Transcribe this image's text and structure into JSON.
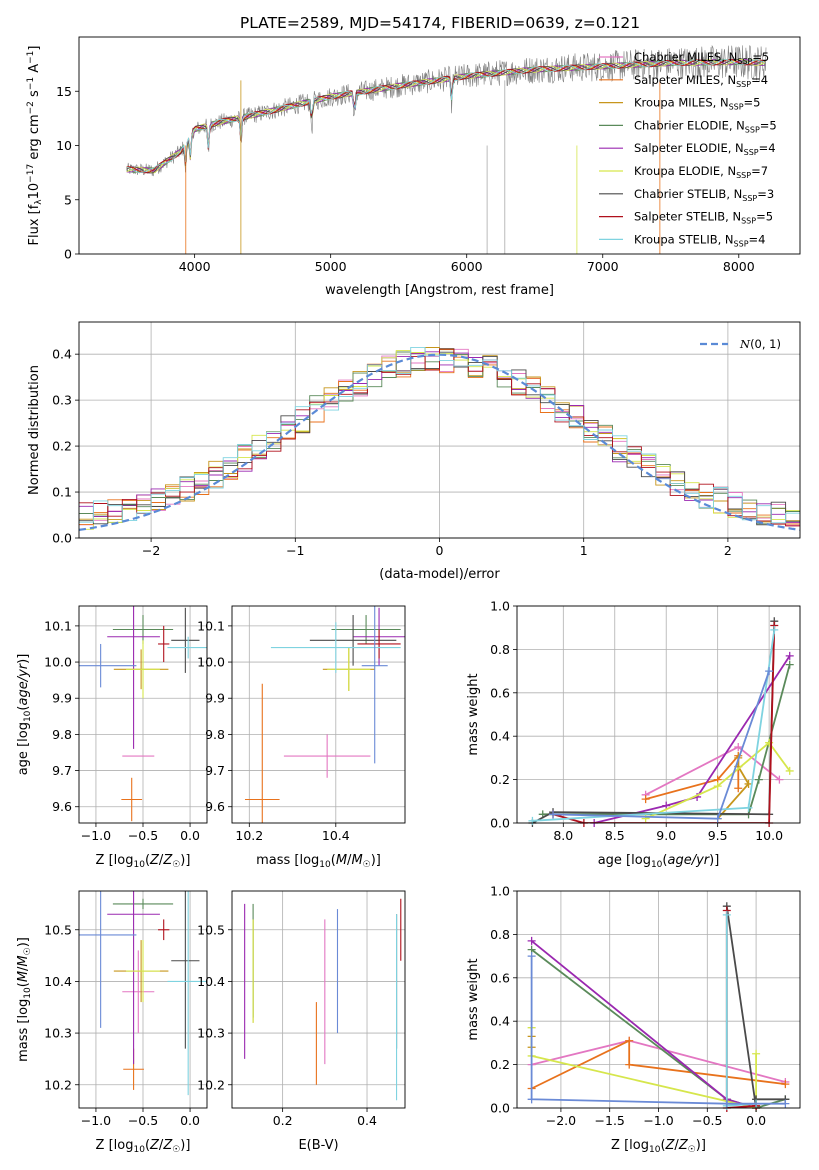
{
  "title": "PLATE=2589, MJD=54174, FIBERID=0639, z=0.121",
  "colors": [
    "#e377c2",
    "#e8721c",
    "#c7961c",
    "#5a8a5a",
    "#9a28b0",
    "#d6e64c",
    "#4a4a4a",
    "#b0101c",
    "#7fd3e0"
  ],
  "chart_data": [
    {
      "id": "spectrum",
      "type": "line",
      "xlabel": "wavelength [Angstrom, rest frame]",
      "ylabel": "Flux [f_λ 10^-17 erg cm^-2 s^-1 A^-1]",
      "xlim": [
        3150,
        8450
      ],
      "ylim": [
        0,
        20
      ],
      "xticks": [
        4000,
        5000,
        6000,
        7000,
        8000
      ],
      "yticks": [
        0,
        5,
        10,
        15
      ],
      "grid": false,
      "legend": "top-right",
      "legend_entries": [
        {
          "model": "Chabrier MILES",
          "nssp": "5",
          "color": "#e377c2"
        },
        {
          "model": "Salpeter MILES",
          "nssp": "4",
          "color": "#e8721c"
        },
        {
          "model": "Kroupa MILES",
          "nssp": "5",
          "color": "#c7961c"
        },
        {
          "model": "Chabrier ELODIE",
          "nssp": "5",
          "color": "#5a8a5a"
        },
        {
          "model": "Salpeter ELODIE",
          "nssp": "4",
          "color": "#9a28b0"
        },
        {
          "model": "Kroupa ELODIE",
          "nssp": "7",
          "color": "#d6e64c"
        },
        {
          "model": "Chabrier STELIB",
          "nssp": "3",
          "color": "#4a4a4a"
        },
        {
          "model": "Salpeter STELIB",
          "nssp": "5",
          "color": "#b0101c"
        },
        {
          "model": "Kroupa STELIB",
          "nssp": "4",
          "color": "#7fd3e0"
        }
      ],
      "spectrum_wavelength_range": [
        3500,
        8200
      ],
      "continuum": [
        [
          3500,
          7.8
        ],
        [
          3700,
          7.7
        ],
        [
          3900,
          9.5
        ],
        [
          4000,
          11.5
        ],
        [
          4200,
          12.2
        ],
        [
          4500,
          13.0
        ],
        [
          5000,
          14.5
        ],
        [
          5500,
          15.5
        ],
        [
          6000,
          16.4
        ],
        [
          6500,
          17.0
        ],
        [
          7000,
          17.3
        ],
        [
          7500,
          17.6
        ],
        [
          8000,
          17.7
        ],
        [
          8200,
          17.6
        ]
      ],
      "model_range": [
        3500,
        8200
      ]
    },
    {
      "id": "residuals",
      "type": "line",
      "xlabel": "(data-model)/error",
      "ylabel": "Normed distribution",
      "xlim": [
        -2.5,
        2.5
      ],
      "ylim": [
        0,
        0.47
      ],
      "xticks": [
        -2,
        -1,
        0,
        1,
        2
      ],
      "yticks": [
        0.0,
        0.1,
        0.2,
        0.3,
        0.4
      ],
      "grid": true,
      "legend": "top-right",
      "legend_label": "N(0,1)",
      "gaussian_color": "#5a8ad6"
    },
    {
      "id": "age-Z",
      "type": "scatter",
      "xlabel": "Z [log10(Z/Z☉)]",
      "ylabel": "age  [log10(age/yr)]",
      "xlim": [
        -1.18,
        0.18
      ],
      "ylim": [
        9.555,
        10.155
      ],
      "xticks": [
        -1.0,
        -0.5,
        0.0
      ],
      "yticks": [
        9.6,
        9.7,
        9.8,
        9.9,
        10.0,
        10.1
      ],
      "grid": true,
      "points": [
        {
          "x": -0.55,
          "y": 9.74,
          "xerr": 0.17,
          "yerr": 0.0,
          "color": "#e377c2"
        },
        {
          "x": -0.62,
          "y": 9.62,
          "xerr": 0.11,
          "yerr": 0.06,
          "color": "#e8721c"
        },
        {
          "x": -0.52,
          "y": 9.98,
          "xerr": 0.29,
          "yerr": 0.055,
          "color": "#c7961c"
        },
        {
          "x": -0.5,
          "y": 10.09,
          "xerr": 0.32,
          "yerr": 0.04,
          "color": "#5a8a5a"
        },
        {
          "x": -0.6,
          "y": 10.07,
          "xerr": 0.28,
          "yerr": 0.31,
          "color": "#9a28b0"
        },
        {
          "x": -0.5,
          "y": 9.98,
          "xerr": 0.18,
          "yerr": 0.08,
          "color": "#d6e64c"
        },
        {
          "x": -0.05,
          "y": 10.06,
          "xerr": 0.15,
          "yerr": 0.09,
          "color": "#4a4a4a"
        },
        {
          "x": -0.28,
          "y": 10.05,
          "xerr": 0.06,
          "yerr": 0.05,
          "color": "#b0101c"
        },
        {
          "x": -0.02,
          "y": 10.04,
          "xerr": 0.22,
          "yerr": 0.03,
          "color": "#7fd3e0"
        },
        {
          "x": -0.95,
          "y": 9.99,
          "xerr": 0.38,
          "yerr": 0.06,
          "color": "#6a8ad6"
        }
      ]
    },
    {
      "id": "age-mass",
      "type": "scatter",
      "xlabel": "mass [log10(M/M☉)]",
      "ylabel": "",
      "xlim": [
        10.16,
        10.56
      ],
      "ylim": [
        9.555,
        10.155
      ],
      "xticks": [
        10.2,
        10.4
      ],
      "yticks": [
        9.6,
        9.7,
        9.8,
        9.9,
        10.0,
        10.1
      ],
      "grid": true,
      "points": [
        {
          "x": 10.38,
          "y": 9.74,
          "xerr": 0.1,
          "yerr": 0.06,
          "color": "#e377c2"
        },
        {
          "x": 10.23,
          "y": 9.62,
          "xerr": 0.04,
          "yerr": 0.32,
          "color": "#e8721c"
        },
        {
          "x": 10.43,
          "y": 9.98,
          "xerr": 0.06,
          "yerr": 0.06,
          "color": "#c7961c"
        },
        {
          "x": 10.47,
          "y": 10.09,
          "xerr": 0.08,
          "yerr": 0.04,
          "color": "#5a8a5a"
        },
        {
          "x": 10.5,
          "y": 10.07,
          "xerr": 0.06,
          "yerr": 0.08,
          "color": "#9a28b0"
        },
        {
          "x": 10.43,
          "y": 9.98,
          "xerr": 0.05,
          "yerr": 0.06,
          "color": "#d6e64c"
        },
        {
          "x": 10.44,
          "y": 10.06,
          "xerr": 0.1,
          "yerr": 0.07,
          "color": "#4a4a4a"
        },
        {
          "x": 10.5,
          "y": 10.05,
          "xerr": 0.05,
          "yerr": 0.04,
          "color": "#b0101c"
        },
        {
          "x": 10.4,
          "y": 10.04,
          "xerr": 0.15,
          "yerr": 0.07,
          "color": "#7fd3e0"
        },
        {
          "x": 10.49,
          "y": 9.99,
          "xerr": 0.03,
          "yerr": 0.27,
          "color": "#6a8ad6"
        }
      ]
    },
    {
      "id": "weights-age",
      "type": "line",
      "xlabel": "age  [log10(age/yr)]",
      "ylabel": "mass weight",
      "xlim": [
        7.55,
        10.3
      ],
      "ylim": [
        0.0,
        1.0
      ],
      "xticks": [
        8.0,
        8.5,
        9.0,
        9.5,
        10.0
      ],
      "yticks": [
        0.0,
        0.2,
        0.4,
        0.6,
        0.8,
        1.0
      ],
      "grid": true,
      "series": [
        {
          "color": "#e377c2",
          "points": [
            [
              8.8,
              0.13
            ],
            [
              9.7,
              0.35
            ],
            [
              10.1,
              0.2
            ]
          ]
        },
        {
          "color": "#e8721c",
          "points": [
            [
              8.8,
              0.11
            ],
            [
              9.5,
              0.2
            ],
            [
              9.7,
              0.31
            ],
            [
              9.7,
              0.16
            ]
          ]
        },
        {
          "color": "#c7961c",
          "points": [
            [
              9.5,
              0.02
            ],
            [
              9.8,
              0.18
            ],
            [
              9.7,
              0.26
            ],
            [
              9.7,
              0.3
            ]
          ]
        },
        {
          "color": "#5a8a5a",
          "points": [
            [
              7.8,
              0.04
            ],
            [
              9.8,
              0.04
            ],
            [
              9.9,
              0.2
            ],
            [
              10.2,
              0.73
            ]
          ]
        },
        {
          "color": "#9a28b0",
          "points": [
            [
              8.3,
              0.0
            ],
            [
              9.0,
              0.08
            ],
            [
              9.3,
              0.12
            ],
            [
              10.2,
              0.77
            ]
          ]
        },
        {
          "color": "#d6e64c",
          "points": [
            [
              8.8,
              0.02
            ],
            [
              9.5,
              0.17
            ],
            [
              10.0,
              0.37
            ],
            [
              10.2,
              0.24
            ]
          ]
        },
        {
          "color": "#4a4a4a",
          "points": [
            [
              7.7,
              0.0
            ],
            [
              7.9,
              0.05
            ],
            [
              10.0,
              0.04
            ],
            [
              10.05,
              0.93
            ]
          ]
        },
        {
          "color": "#b0101c",
          "points": [
            [
              7.9,
              0.04
            ],
            [
              8.2,
              0.0
            ],
            [
              10.0,
              0.0
            ],
            [
              10.05,
              0.91
            ]
          ]
        },
        {
          "color": "#7fd3e0",
          "points": [
            [
              7.7,
              0.01
            ],
            [
              9.8,
              0.07
            ],
            [
              10.05,
              0.89
            ]
          ]
        },
        {
          "color": "#6a8ad6",
          "points": [
            [
              7.9,
              0.04
            ],
            [
              9.5,
              0.02
            ],
            [
              10.0,
              0.7
            ]
          ]
        }
      ]
    },
    {
      "id": "mass-Z",
      "type": "scatter",
      "xlabel": "Z [log10(Z/Z☉)]",
      "ylabel": "mass [log10(M/M☉)]",
      "xlim": [
        -1.18,
        0.18
      ],
      "ylim": [
        10.155,
        10.575
      ],
      "xticks": [
        -1.0,
        -0.5,
        0.0
      ],
      "yticks": [
        10.2,
        10.3,
        10.4,
        10.5
      ],
      "grid": true,
      "points": [
        {
          "x": -0.55,
          "y": 10.38,
          "xerr": 0.17,
          "yerr": 0.08,
          "color": "#e377c2"
        },
        {
          "x": -0.6,
          "y": 10.23,
          "xerr": 0.11,
          "yerr": 0.04,
          "color": "#e8721c"
        },
        {
          "x": -0.52,
          "y": 10.42,
          "xerr": 0.29,
          "yerr": 0.06,
          "color": "#c7961c"
        },
        {
          "x": -0.5,
          "y": 10.55,
          "xerr": 0.32,
          "yerr": 0.01,
          "color": "#5a8a5a"
        },
        {
          "x": -0.6,
          "y": 10.53,
          "xerr": 0.28,
          "yerr": 0.29,
          "color": "#9a28b0"
        },
        {
          "x": -0.5,
          "y": 10.42,
          "xerr": 0.18,
          "yerr": 0.06,
          "color": "#d6e64c"
        },
        {
          "x": -0.05,
          "y": 10.44,
          "xerr": 0.15,
          "yerr": 0.17,
          "color": "#4a4a4a"
        },
        {
          "x": -0.28,
          "y": 10.5,
          "xerr": 0.06,
          "yerr": 0.02,
          "color": "#b0101c"
        },
        {
          "x": -0.02,
          "y": 10.4,
          "xerr": 0.22,
          "yerr": 0.22,
          "color": "#7fd3e0"
        },
        {
          "x": -0.95,
          "y": 10.49,
          "xerr": 0.38,
          "yerr": 0.18,
          "color": "#6a8ad6"
        }
      ]
    },
    {
      "id": "mass-EBV",
      "type": "scatter",
      "xlabel": "E(B-V)",
      "ylabel": "",
      "xlim": [
        0.08,
        0.49
      ],
      "ylim": [
        10.155,
        10.575
      ],
      "xticks": [
        0.2,
        0.4
      ],
      "yticks": [
        10.2,
        10.3,
        10.4,
        10.5
      ],
      "grid": true,
      "points": [
        {
          "x": 0.3,
          "y": 10.38,
          "yerr": 0.14,
          "color": "#e377c2"
        },
        {
          "x": 0.28,
          "y": 10.28,
          "yerr": 0.08,
          "color": "#e8721c"
        },
        {
          "x": 0.13,
          "y": 10.42,
          "yerr": 0.1,
          "color": "#c7961c"
        },
        {
          "x": 0.13,
          "y": 10.44,
          "yerr": 0.11,
          "color": "#5a8a5a"
        },
        {
          "x": 0.11,
          "y": 10.4,
          "yerr": 0.15,
          "color": "#9a28b0"
        },
        {
          "x": 0.13,
          "y": 10.42,
          "yerr": 0.1,
          "color": "#d6e64c"
        },
        {
          "x": 0.47,
          "y": 10.4,
          "yerr": 0.13,
          "color": "#4a4a4a"
        },
        {
          "x": 0.48,
          "y": 10.5,
          "yerr": 0.06,
          "color": "#b0101c"
        },
        {
          "x": 0.47,
          "y": 10.35,
          "yerr": 0.18,
          "color": "#7fd3e0"
        },
        {
          "x": 0.33,
          "y": 10.42,
          "yerr": 0.12,
          "color": "#6a8ad6"
        }
      ]
    },
    {
      "id": "weights-Z",
      "type": "line",
      "xlabel": "Z [log10(Z/Z☉)]",
      "ylabel": "mass weight",
      "xlim": [
        -2.45,
        0.45
      ],
      "ylim": [
        0.0,
        1.0
      ],
      "xticks": [
        -2.0,
        -1.5,
        -1.0,
        -0.5,
        0.0
      ],
      "yticks": [
        0.0,
        0.2,
        0.4,
        0.6,
        0.8,
        1.0
      ],
      "grid": true,
      "series": [
        {
          "color": "#e377c2",
          "points": [
            [
              -2.3,
              0.2
            ],
            [
              -1.3,
              0.31
            ],
            [
              0.3,
              0.12
            ]
          ]
        },
        {
          "color": "#e8721c",
          "points": [
            [
              -2.3,
              0.09
            ],
            [
              -1.3,
              0.31
            ],
            [
              -1.3,
              0.2
            ],
            [
              0.3,
              0.11
            ]
          ]
        },
        {
          "color": "#c7961c",
          "points": [
            [
              -2.3,
              0.28
            ],
            [
              -2.3,
              0.33
            ]
          ]
        },
        {
          "color": "#5a8a5a",
          "points": [
            [
              -2.3,
              0.73
            ],
            [
              -0.3,
              0.04
            ],
            [
              0.0,
              0.0
            ],
            [
              0.3,
              0.04
            ]
          ]
        },
        {
          "color": "#9a28b0",
          "points": [
            [
              -2.3,
              0.77
            ],
            [
              -0.3,
              0.04
            ],
            [
              0.0,
              0.0
            ]
          ]
        },
        {
          "color": "#d6e64c",
          "points": [
            [
              -2.3,
              0.37
            ],
            [
              -2.3,
              0.24
            ],
            [
              0.0,
              0.0
            ],
            [
              0.0,
              0.25
            ]
          ]
        },
        {
          "color": "#4a4a4a",
          "points": [
            [
              -0.3,
              0.93
            ],
            [
              0.0,
              0.0
            ],
            [
              0.0,
              0.04
            ],
            [
              0.3,
              0.04
            ]
          ]
        },
        {
          "color": "#b0101c",
          "points": [
            [
              -0.3,
              0.91
            ],
            [
              -0.3,
              0.0
            ],
            [
              0.0,
              0.01
            ]
          ]
        },
        {
          "color": "#7fd3e0",
          "points": [
            [
              -0.3,
              0.89
            ],
            [
              -0.3,
              0.01
            ],
            [
              0.0,
              0.02
            ]
          ]
        },
        {
          "color": "#6a8ad6",
          "points": [
            [
              -2.3,
              0.7
            ],
            [
              -2.3,
              0.04
            ],
            [
              -0.3,
              0.02
            ],
            [
              0.3,
              0.02
            ]
          ]
        }
      ]
    }
  ]
}
